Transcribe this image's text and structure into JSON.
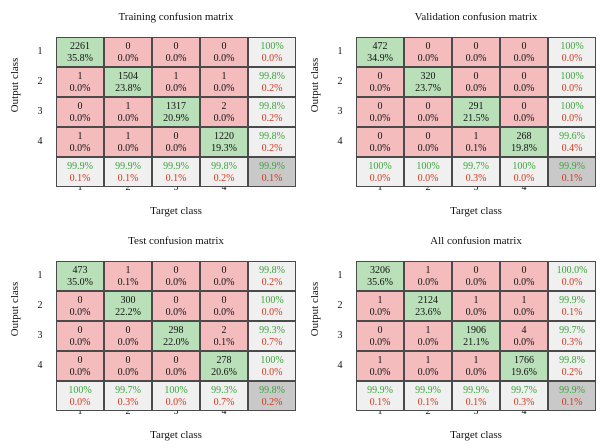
{
  "ylabel": "Output class",
  "xlabel": "Target class",
  "class_labels": [
    "1",
    "2",
    "3",
    "4"
  ],
  "matrices": [
    {
      "title": "Training confusion matrix",
      "counts": [
        [
          "2261",
          "0",
          "0",
          "0"
        ],
        [
          "1",
          "1504",
          "1",
          "1"
        ],
        [
          "0",
          "1",
          "1317",
          "2"
        ],
        [
          "1",
          "1",
          "0",
          "1220"
        ]
      ],
      "percents": [
        [
          "35.8%",
          "0.0%",
          "0.0%",
          "0.0%"
        ],
        [
          "0.0%",
          "23.8%",
          "0.0%",
          "0.0%"
        ],
        [
          "0.0%",
          "0.0%",
          "20.9%",
          "0.0%"
        ],
        [
          "0.0%",
          "0.0%",
          "0.0%",
          "19.3%"
        ]
      ],
      "row_summary": [
        [
          "100%",
          "0.0%"
        ],
        [
          "99.8%",
          "0.2%"
        ],
        [
          "99.8%",
          "0.2%"
        ],
        [
          "99.8%",
          "0.2%"
        ]
      ],
      "col_summary": [
        [
          "99.9%",
          "0.1%"
        ],
        [
          "99.9%",
          "0.1%"
        ],
        [
          "99.9%",
          "0.1%"
        ],
        [
          "99.8%",
          "0.2%"
        ]
      ],
      "total": [
        "99.9%",
        "0.1%"
      ]
    },
    {
      "title": "Validation confusion matrix",
      "counts": [
        [
          "472",
          "0",
          "0",
          "0"
        ],
        [
          "0",
          "320",
          "0",
          "0"
        ],
        [
          "0",
          "0",
          "291",
          "0"
        ],
        [
          "0",
          "0",
          "1",
          "268"
        ]
      ],
      "percents": [
        [
          "34.9%",
          "0.0%",
          "0.0%",
          "0.0%"
        ],
        [
          "0.0%",
          "23.7%",
          "0.0%",
          "0.0%"
        ],
        [
          "0.0%",
          "0.0%",
          "21.5%",
          "0.0%"
        ],
        [
          "0.0%",
          "0.0%",
          "0.1%",
          "19.8%"
        ]
      ],
      "row_summary": [
        [
          "100%",
          "0.0%"
        ],
        [
          "100%",
          "0.0%"
        ],
        [
          "100%",
          "0.0%"
        ],
        [
          "99.6%",
          "0.4%"
        ]
      ],
      "col_summary": [
        [
          "100%",
          "0.0%"
        ],
        [
          "100%",
          "0.0%"
        ],
        [
          "99.7%",
          "0.3%"
        ],
        [
          "100%",
          "0.0%"
        ]
      ],
      "total": [
        "99.9%",
        "0.1%"
      ]
    },
    {
      "title": "Test confusion matrix",
      "counts": [
        [
          "473",
          "1",
          "0",
          "0"
        ],
        [
          "0",
          "300",
          "0",
          "0"
        ],
        [
          "0",
          "0",
          "298",
          "2"
        ],
        [
          "0",
          "0",
          "0",
          "278"
        ]
      ],
      "percents": [
        [
          "35.0%",
          "0.1%",
          "0.0%",
          "0.0%"
        ],
        [
          "0.0%",
          "22.2%",
          "0.0%",
          "0.0%"
        ],
        [
          "0.0%",
          "0.0%",
          "22.0%",
          "0.1%"
        ],
        [
          "0.0%",
          "0.0%",
          "0.0%",
          "20.6%"
        ]
      ],
      "row_summary": [
        [
          "99.8%",
          "0.2%"
        ],
        [
          "100%",
          "0.0%"
        ],
        [
          "99.3%",
          "0.7%"
        ],
        [
          "100%",
          "0.0%"
        ]
      ],
      "col_summary": [
        [
          "100%",
          "0.0%"
        ],
        [
          "99.7%",
          "0.3%"
        ],
        [
          "100%",
          "0.0%"
        ],
        [
          "99.3%",
          "0.7%"
        ]
      ],
      "total": [
        "99.8%",
        "0.2%"
      ]
    },
    {
      "title": "All confusion matrix",
      "counts": [
        [
          "3206",
          "1",
          "0",
          "0"
        ],
        [
          "1",
          "2124",
          "1",
          "1"
        ],
        [
          "0",
          "1",
          "1906",
          "4"
        ],
        [
          "1",
          "1",
          "1",
          "1766"
        ]
      ],
      "percents": [
        [
          "35.6%",
          "0.0%",
          "0.0%",
          "0.0%"
        ],
        [
          "0.0%",
          "23.6%",
          "0.0%",
          "0.0%"
        ],
        [
          "0.0%",
          "0.0%",
          "21.1%",
          "0.0%"
        ],
        [
          "0.0%",
          "0.0%",
          "0.0%",
          "19.6%"
        ]
      ],
      "row_summary": [
        [
          "100.0%",
          "0.0%"
        ],
        [
          "99.9%",
          "0.1%"
        ],
        [
          "99.7%",
          "0.3%"
        ],
        [
          "99.8%",
          "0.2%"
        ]
      ],
      "col_summary": [
        [
          "99.9%",
          "0.1%"
        ],
        [
          "99.9%",
          "0.1%"
        ],
        [
          "99.9%",
          "0.1%"
        ],
        [
          "99.7%",
          "0.3%"
        ]
      ],
      "total": [
        "99.9%",
        "0.1%"
      ]
    }
  ],
  "colors": {
    "correct_cell": "#b9e0b9",
    "incorrect_cell": "#f4bcbc",
    "summary_cell": "#f0f0f0",
    "total_cell": "#c9c9c9",
    "correct_text": "#3ea33e",
    "incorrect_text": "#d2381e"
  },
  "chart_data": [
    {
      "type": "heatmap",
      "title": "Training confusion matrix",
      "xlabel": "Target class",
      "ylabel": "Output class",
      "categories": [
        "1",
        "2",
        "3",
        "4"
      ],
      "values": [
        [
          2261,
          0,
          0,
          0
        ],
        [
          1,
          1504,
          1,
          1
        ],
        [
          0,
          1,
          1317,
          2
        ],
        [
          1,
          1,
          0,
          1220
        ]
      ]
    },
    {
      "type": "heatmap",
      "title": "Validation confusion matrix",
      "xlabel": "Target class",
      "ylabel": "Output class",
      "categories": [
        "1",
        "2",
        "3",
        "4"
      ],
      "values": [
        [
          472,
          0,
          0,
          0
        ],
        [
          0,
          320,
          0,
          0
        ],
        [
          0,
          0,
          291,
          0
        ],
        [
          0,
          0,
          1,
          268
        ]
      ]
    },
    {
      "type": "heatmap",
      "title": "Test confusion matrix",
      "xlabel": "Target class",
      "ylabel": "Output class",
      "categories": [
        "1",
        "2",
        "3",
        "4"
      ],
      "values": [
        [
          473,
          1,
          0,
          0
        ],
        [
          0,
          300,
          0,
          0
        ],
        [
          0,
          0,
          298,
          2
        ],
        [
          0,
          0,
          0,
          278
        ]
      ]
    },
    {
      "type": "heatmap",
      "title": "All confusion matrix",
      "xlabel": "Target class",
      "ylabel": "Output class",
      "categories": [
        "1",
        "2",
        "3",
        "4"
      ],
      "values": [
        [
          3206,
          1,
          0,
          0
        ],
        [
          1,
          2124,
          1,
          1
        ],
        [
          0,
          1,
          1906,
          4
        ],
        [
          1,
          1,
          1,
          1766
        ]
      ]
    }
  ]
}
